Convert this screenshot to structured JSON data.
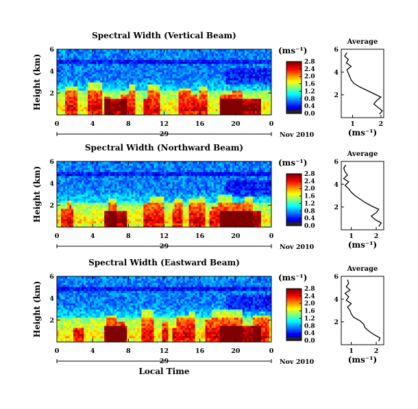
{
  "chart_data": [
    {
      "type": "heatmap",
      "title": "Spectral Width (Vertical Beam)",
      "ylabel": "Height (km)",
      "xlim": [
        0,
        24
      ],
      "ylim": [
        0,
        6
      ],
      "x_ticks": [
        "0",
        "4",
        "8",
        "12",
        "16",
        "20",
        "0"
      ],
      "y_ticks": [
        "2",
        "4",
        "6"
      ],
      "date_ticks": [
        "29"
      ],
      "date_label": "Nov 2010",
      "colorbar": {
        "unit": "(ms⁻¹)",
        "range": [
          0,
          2.8
        ],
        "ticks": [
          "0.0",
          "0.4",
          "0.8",
          "1.2",
          "1.6",
          "2.0",
          "2.4",
          "2.8"
        ]
      },
      "average": {
        "title": "Average",
        "xlabel": "(ms⁻¹)",
        "xlim": [
          0.6,
          2.1
        ],
        "x_ticks": [
          "1",
          "2"
        ],
        "y_ticks": [
          "2",
          "4",
          "6"
        ],
        "ylim": [
          0,
          6
        ],
        "height": [
          0.3,
          0.6,
          0.9,
          1.2,
          1.5,
          1.8,
          2.1,
          2.4,
          2.7,
          3.0,
          3.3,
          3.6,
          3.9,
          4.2,
          4.5,
          4.8,
          5.1,
          5.4,
          5.7
        ],
        "values": [
          1.95,
          2.05,
          1.9,
          1.75,
          1.85,
          2.0,
          1.75,
          1.5,
          1.25,
          1.05,
          0.95,
          0.9,
          0.85,
          0.8,
          0.95,
          0.78,
          0.85,
          0.72,
          0.8
        ]
      }
    },
    {
      "type": "heatmap",
      "title": "Spectral Width (Northward Beam)",
      "ylabel": "Height (km)",
      "xlim": [
        0,
        24
      ],
      "ylim": [
        0,
        6
      ],
      "x_ticks": [
        "0",
        "4",
        "8",
        "12",
        "16",
        "20",
        "0"
      ],
      "y_ticks": [
        "2",
        "4",
        "6"
      ],
      "date_ticks": [
        "29"
      ],
      "date_label": "Nov 2010",
      "colorbar": {
        "unit": "(ms⁻¹)",
        "range": [
          0,
          2.8
        ],
        "ticks": [
          "0.0",
          "0.4",
          "0.8",
          "1.2",
          "1.6",
          "2.0",
          "2.4",
          "2.8"
        ]
      },
      "average": {
        "title": "Average",
        "xlabel": "(ms⁻¹)",
        "xlim": [
          0.6,
          2.3
        ],
        "x_ticks": [
          "1",
          "2"
        ],
        "y_ticks": [
          "2",
          "4",
          "6"
        ],
        "ylim": [
          0,
          6
        ],
        "height": [
          0.3,
          0.6,
          0.9,
          1.2,
          1.5,
          1.8,
          2.1,
          2.4,
          2.7,
          3.0,
          3.3,
          3.6,
          3.9,
          4.2,
          4.5,
          4.8,
          5.1,
          5.4,
          5.7
        ],
        "values": [
          2.1,
          2.2,
          1.95,
          1.8,
          2.0,
          2.1,
          1.8,
          1.55,
          1.35,
          1.15,
          1.0,
          0.9,
          0.75,
          0.9,
          0.7,
          0.85,
          0.75,
          0.7,
          0.78
        ]
      }
    },
    {
      "type": "heatmap",
      "title": "Spectral Width (Eastward Beam)",
      "ylabel": "Height (km)",
      "xlabel": "Local Time",
      "xlim": [
        0,
        24
      ],
      "ylim": [
        0,
        6
      ],
      "x_ticks": [
        "0",
        "4",
        "8",
        "12",
        "16",
        "20",
        "0"
      ],
      "y_ticks": [
        "2",
        "4",
        "6"
      ],
      "date_ticks": [
        "29"
      ],
      "date_label": "Nov 2010",
      "colorbar": {
        "unit": "(ms⁻¹)",
        "range": [
          0,
          2.8
        ],
        "ticks": [
          "0.0",
          "0.4",
          "0.8",
          "1.2",
          "1.6",
          "2.0",
          "2.4",
          "2.8"
        ]
      },
      "average": {
        "title": "Average",
        "xlabel": "(ms⁻¹)",
        "xlim": [
          0.6,
          2.3
        ],
        "x_ticks": [
          "1",
          "2"
        ],
        "y_ticks": [
          "2",
          "4",
          "6"
        ],
        "ylim": [
          0,
          6
        ],
        "height": [
          0.3,
          0.6,
          0.9,
          1.2,
          1.5,
          1.8,
          2.1,
          2.4,
          2.7,
          3.0,
          3.3,
          3.6,
          3.9,
          4.2,
          4.5,
          4.8,
          5.1,
          5.4,
          5.7
        ],
        "values": [
          2.1,
          2.15,
          1.9,
          1.7,
          1.55,
          1.5,
          1.35,
          1.1,
          1.0,
          0.95,
          0.85,
          1.0,
          0.8,
          0.9,
          0.75,
          0.95,
          0.8,
          0.9,
          0.85
        ]
      }
    }
  ]
}
